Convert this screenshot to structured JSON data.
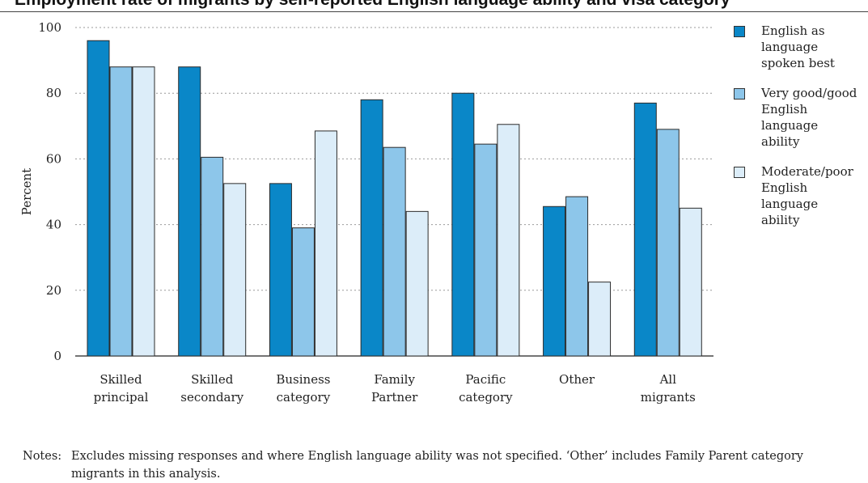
{
  "header": {
    "title": "Employment rate of migrants by self-reported English language ability and visa category"
  },
  "chart_data": {
    "type": "bar",
    "title": "",
    "xlabel": "",
    "ylabel": "Percent",
    "ylim": [
      0,
      100
    ],
    "yticks": [
      0,
      20,
      40,
      60,
      80,
      100
    ],
    "grid": "horizontal dotted",
    "legend_position": "right",
    "categories": [
      [
        "Skilled",
        "principal"
      ],
      [
        "Skilled",
        "secondary"
      ],
      [
        "Business",
        "category"
      ],
      [
        "Family",
        "Partner"
      ],
      [
        "Pacific",
        "category"
      ],
      [
        "Other"
      ],
      [
        "All",
        "migrants"
      ]
    ],
    "series": [
      {
        "name": "English as language spoken best",
        "legend_lines": [
          "English as",
          "language",
          "spoken best"
        ],
        "color": "#0a87c8",
        "values": [
          96,
          88,
          52.5,
          78,
          80,
          45.5,
          77
        ]
      },
      {
        "name": "Very good/good English language ability",
        "legend_lines": [
          "Very good/good",
          "English language",
          "ability"
        ],
        "color": "#8dc6ea",
        "values": [
          88,
          60.5,
          39,
          63.5,
          64.5,
          48.5,
          69
        ]
      },
      {
        "name": "Moderate/poor English language ability",
        "legend_lines": [
          "Moderate/poor",
          "English language",
          "ability"
        ],
        "color": "#dcedf9",
        "values": [
          88,
          52.5,
          68.5,
          44,
          70.5,
          22.5,
          45
        ]
      }
    ]
  },
  "notes": {
    "label": "Notes:",
    "text": "Excludes missing responses and where English language ability was not specified. ‘Other’ includes Family Parent category migrants in this analysis."
  }
}
